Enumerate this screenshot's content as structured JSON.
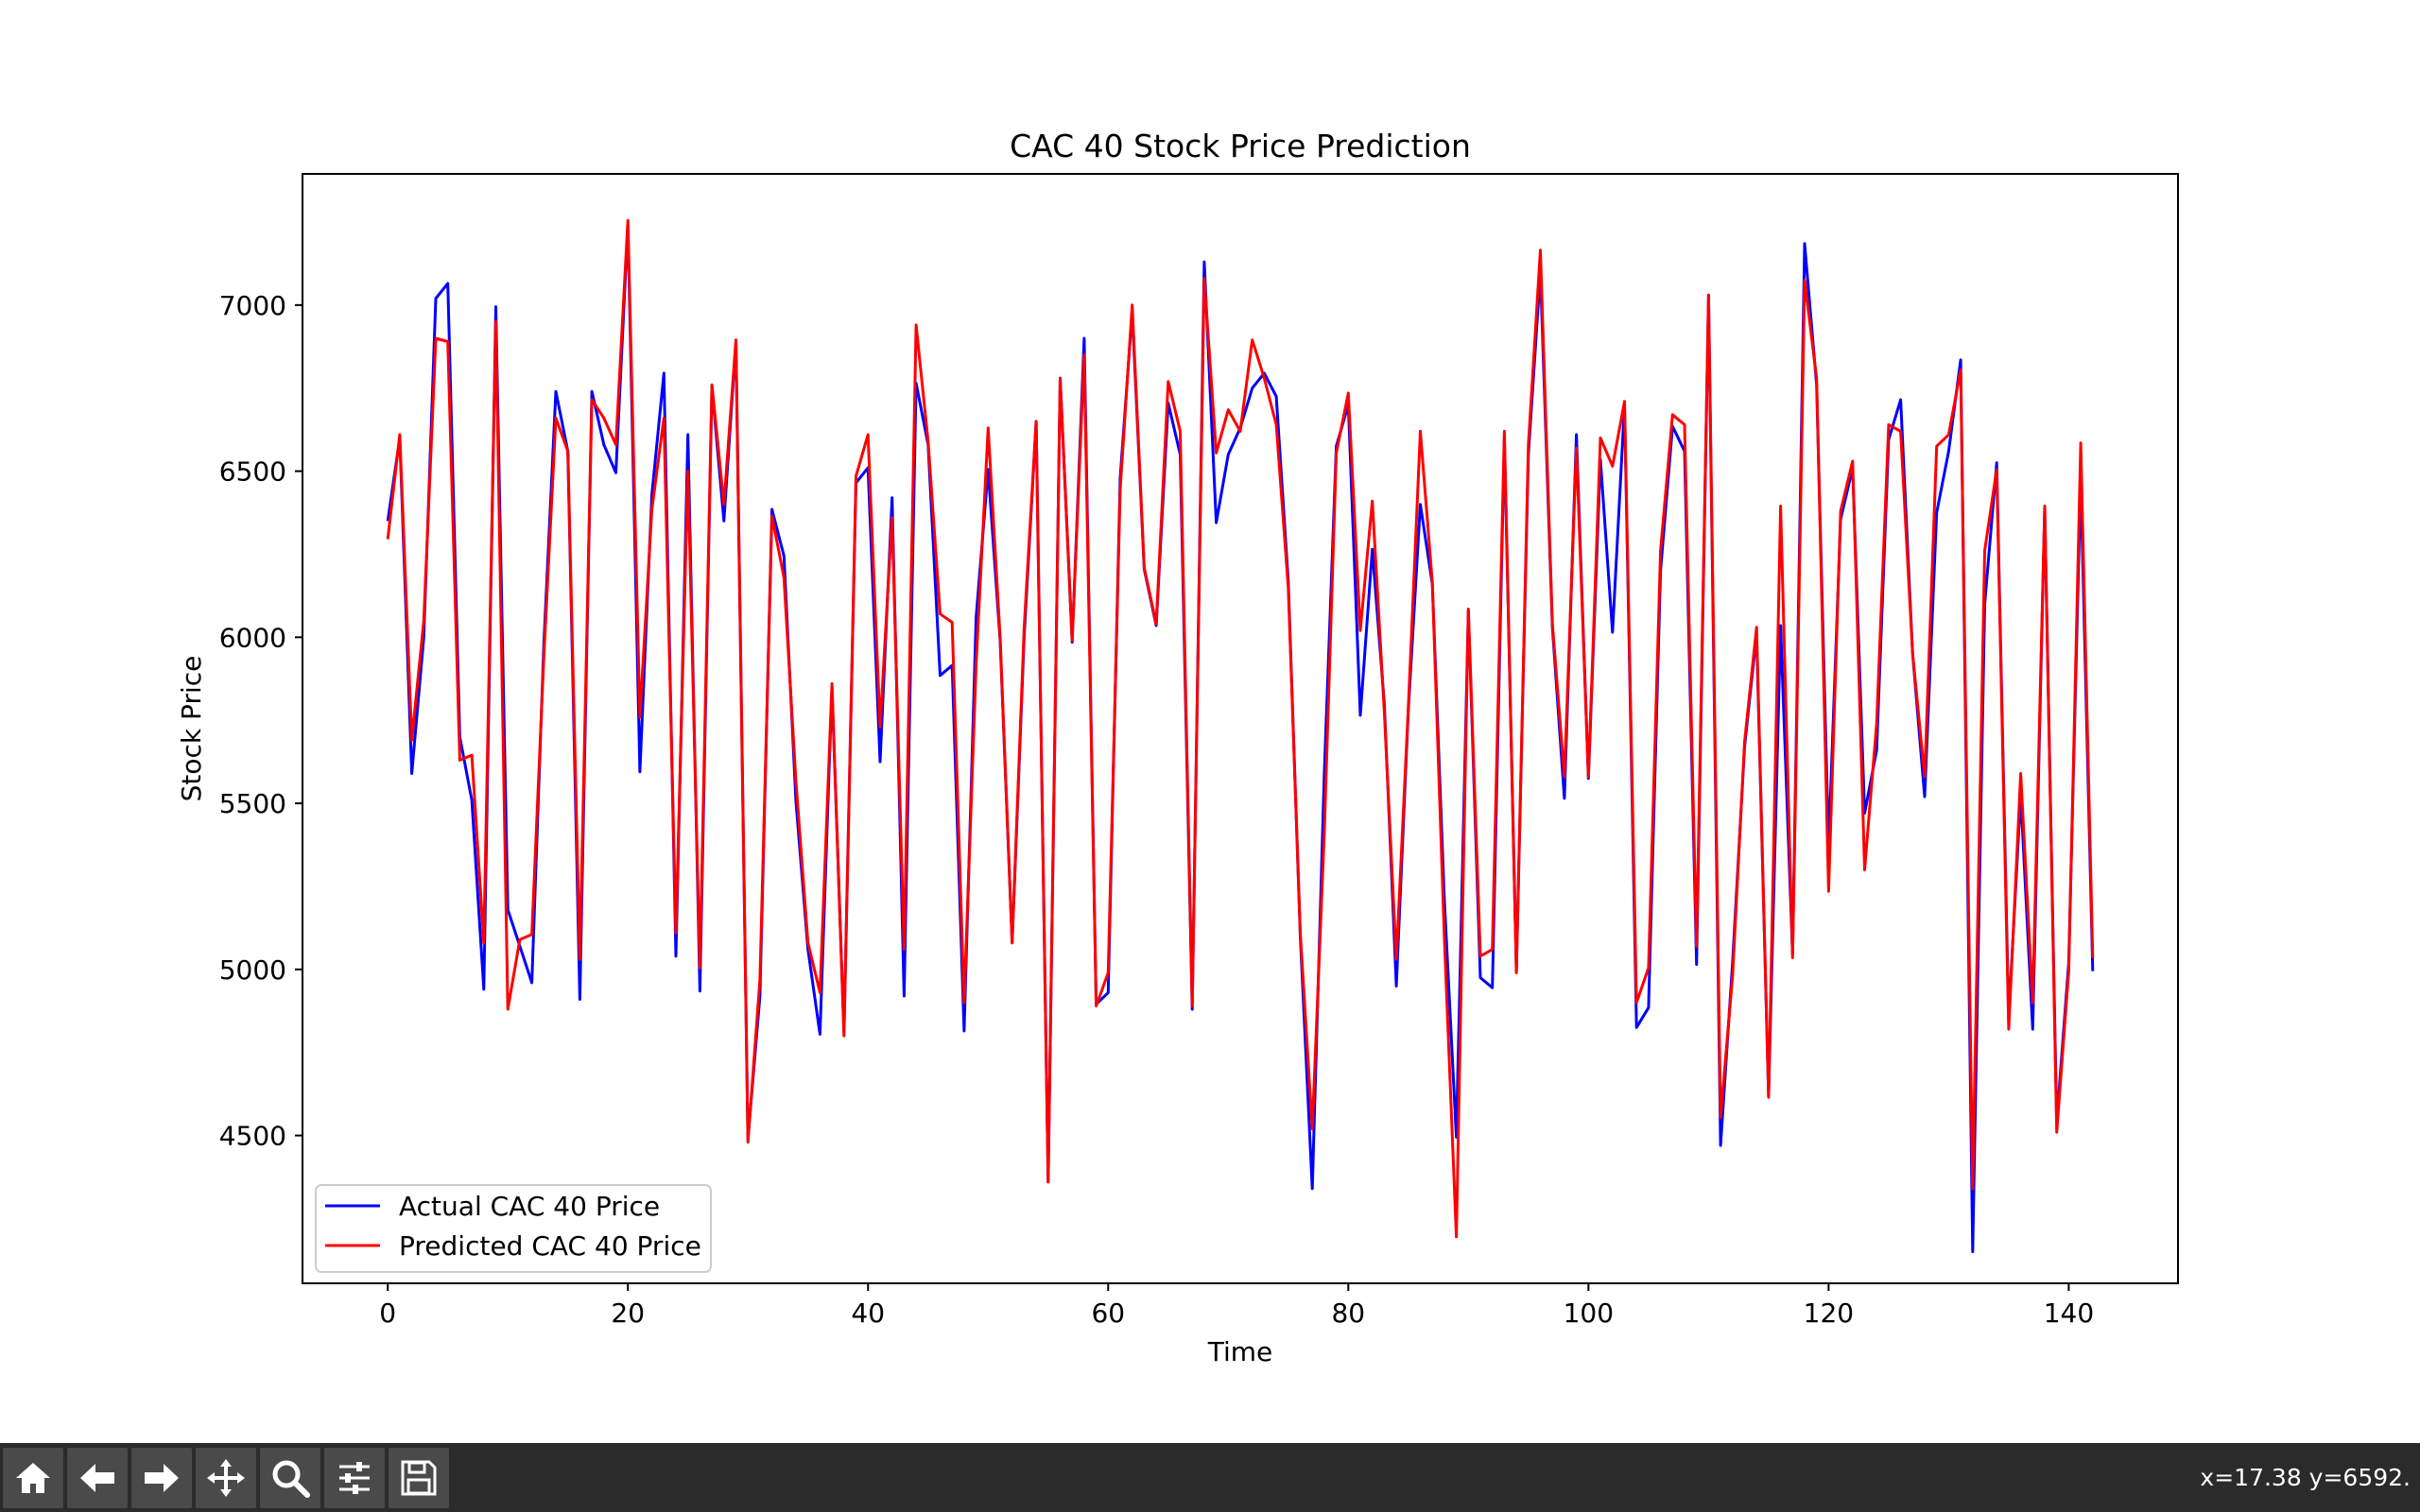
{
  "chart_data": {
    "type": "line",
    "title": "CAC 40 Stock Price Prediction",
    "xlabel": "Time",
    "ylabel": "Stock Price",
    "xlim": [
      -7.1,
      149.1
    ],
    "ylim": [
      4055,
      7395
    ],
    "xticks": [
      0,
      20,
      40,
      60,
      80,
      100,
      120,
      140
    ],
    "yticks": [
      4500,
      5000,
      5500,
      6000,
      6500,
      7000
    ],
    "grid": false,
    "legend_position": "lower-left",
    "series": [
      {
        "name": "Actual CAC 40 Price",
        "color": "#0000ff",
        "values": [
          6350,
          6600,
          5590,
          6000,
          7020,
          7065,
          5700,
          5510,
          4940,
          6995,
          5180,
          5070,
          4960,
          5980,
          6740,
          6560,
          4910,
          6740,
          6580,
          6495,
          7240,
          5595,
          6430,
          6795,
          5040,
          6610,
          4935,
          6755,
          6350,
          6890,
          4490,
          4920,
          6385,
          6245,
          5505,
          5060,
          4805,
          5850,
          4810,
          6465,
          6510,
          5625,
          6420,
          4920,
          6765,
          6580,
          5885,
          5915,
          4815,
          6060,
          6505,
          5990,
          5080,
          6000,
          6650,
          4360,
          6780,
          5985,
          6900,
          4895,
          4930,
          6480,
          6980,
          6205,
          6035,
          6705,
          6550,
          4880,
          7130,
          6345,
          6550,
          6630,
          6750,
          6795,
          6725,
          6170,
          5100,
          4340,
          5590,
          6575,
          6700,
          5765,
          6265,
          5800,
          4950,
          5780,
          6400,
          6160,
          5210,
          4495,
          6080,
          4975,
          4945,
          6600,
          4995,
          6550,
          7100,
          6030,
          5515,
          6610,
          5575,
          6535,
          6015,
          6700,
          4825,
          4885,
          6200,
          6635,
          6560,
          5015,
          7030,
          4470,
          5020,
          5670,
          6010,
          4620,
          6035,
          5045,
          7185,
          6760,
          5370,
          6355,
          6510,
          5470,
          5660,
          6595,
          6715,
          5950,
          5520,
          6375,
          6560,
          6835,
          4150,
          6100,
          6525,
          4855,
          5525,
          4820,
          6390,
          4540,
          5020,
          6480,
          4995
        ]
      },
      {
        "name": "Predicted CAC 40 Price",
        "color": "#ff0000",
        "values": [
          6295,
          6610,
          5690,
          6050,
          6900,
          6890,
          5630,
          5645,
          5080,
          6950,
          4880,
          5090,
          5105,
          5940,
          6660,
          6560,
          5030,
          6715,
          6660,
          6580,
          7255,
          5760,
          6385,
          6660,
          5110,
          6500,
          5005,
          6760,
          6400,
          6895,
          4480,
          4970,
          6365,
          6180,
          5565,
          5080,
          4930,
          5860,
          4800,
          6485,
          6610,
          5730,
          6360,
          5060,
          6940,
          6590,
          6070,
          6045,
          4900,
          5920,
          6630,
          6000,
          5080,
          6030,
          6650,
          4360,
          6780,
          5990,
          6850,
          4890,
          4990,
          6445,
          7000,
          6210,
          6040,
          6770,
          6620,
          4890,
          7080,
          6555,
          6685,
          6620,
          6895,
          6780,
          6640,
          6150,
          5110,
          4520,
          5410,
          6555,
          6735,
          6020,
          6410,
          5775,
          5030,
          5790,
          6620,
          6165,
          5095,
          4195,
          6085,
          5040,
          5060,
          6620,
          4990,
          6580,
          7165,
          6040,
          5580,
          6570,
          5580,
          6600,
          6515,
          6710,
          4900,
          5005,
          6260,
          6670,
          6640,
          5070,
          7030,
          4555,
          4980,
          5685,
          6030,
          4615,
          6395,
          5035,
          7075,
          6780,
          5235,
          6380,
          6530,
          5300,
          5740,
          6640,
          6620,
          5950,
          5580,
          6575,
          6610,
          6805,
          4340,
          6260,
          6505,
          4820,
          5590,
          4900,
          6395,
          4510,
          4995,
          6585,
          5035
        ]
      }
    ]
  },
  "toolbar": {
    "buttons": [
      "home-icon",
      "back-icon",
      "forward-icon",
      "pan-icon",
      "zoom-icon",
      "configure-icon",
      "save-icon"
    ],
    "coords": "x=17.38 y=6592."
  }
}
